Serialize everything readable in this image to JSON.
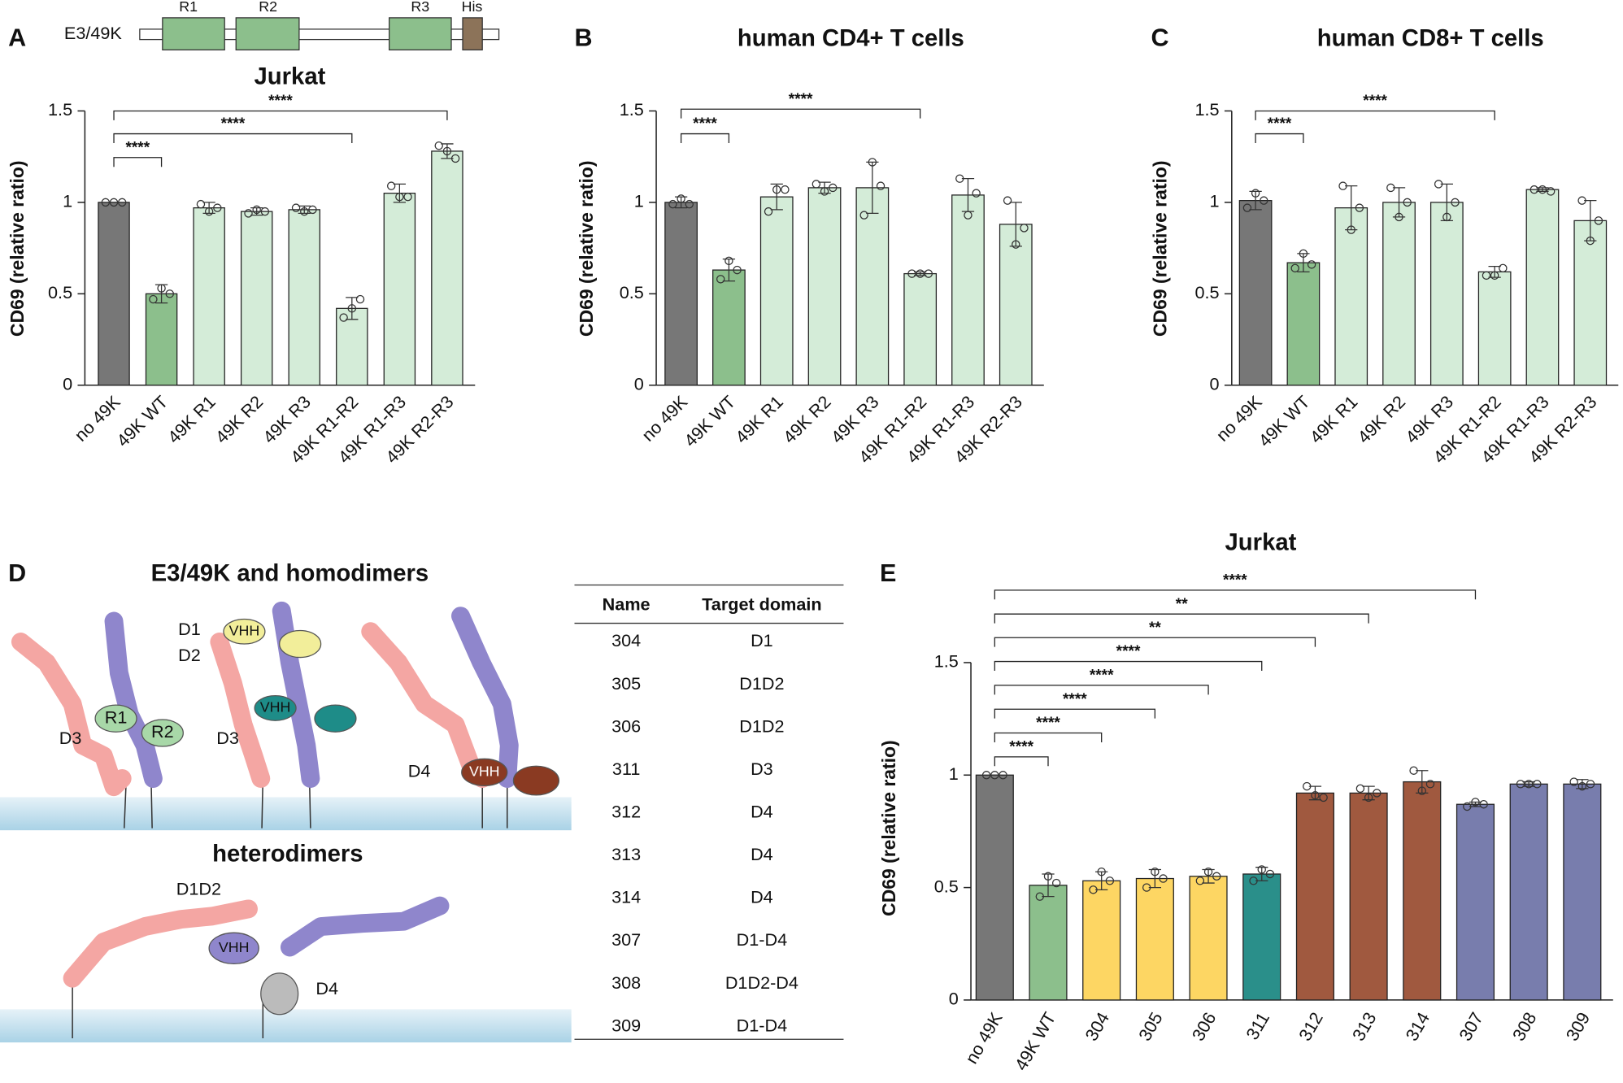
{
  "panels": {
    "a": "A",
    "b": "B",
    "c": "C",
    "d": "D",
    "e": "E"
  },
  "schematic": {
    "name": "E3/49K",
    "r1": "R1",
    "r2": "R2",
    "r3": "R3",
    "his": "His"
  },
  "diagram": {
    "title": "E3/49K and homodimers",
    "subtitle": "heterodimers",
    "labels1": {
      "r1": "R1",
      "r2": "R2",
      "d3": "D3"
    },
    "labels2": {
      "d1": "D1",
      "d2": "D2",
      "d3": "D3",
      "vhh1": "VHH",
      "vhh2": "VHH"
    },
    "labels3": {
      "d4": "D4",
      "vhh": "VHH"
    },
    "labels4": {
      "d1d2": "D1D2",
      "vhh": "VHH",
      "d4": "D4"
    }
  },
  "table": {
    "header": [
      "Name",
      "Target domain"
    ],
    "rows": [
      [
        "304",
        "D1"
      ],
      [
        "305",
        "D1D2"
      ],
      [
        "306",
        "D1D2"
      ],
      [
        "311",
        "D3"
      ],
      [
        "312",
        "D4"
      ],
      [
        "313",
        "D4"
      ],
      [
        "314",
        "D4"
      ],
      [
        "307",
        "D1-D4"
      ],
      [
        "308",
        "D1D2-D4"
      ],
      [
        "309",
        "D1-D4"
      ]
    ]
  },
  "chart_data": [
    {
      "type": "bar",
      "title": "Jurkat",
      "y_label": "CD69 (relative ratio)",
      "categories": [
        "no 49K",
        "49K WT",
        "49K R1",
        "49K R2",
        "49K R3",
        "49K R1-R2",
        "49K R1-R3",
        "49K R2-R3"
      ],
      "values": [
        1.0,
        0.5,
        0.97,
        0.95,
        0.96,
        0.42,
        1.05,
        1.28
      ],
      "errors": [
        0,
        0.05,
        0.03,
        0.02,
        0.02,
        0.06,
        0.05,
        0.04
      ],
      "points": [
        [
          1,
          1,
          1
        ],
        [
          0.47,
          0.53,
          0.5
        ],
        [
          0.99,
          0.95,
          0.97
        ],
        [
          0.94,
          0.96,
          0.95
        ],
        [
          0.97,
          0.95,
          0.96
        ],
        [
          0.37,
          0.42,
          0.47
        ],
        [
          1.09,
          1.03,
          1.03
        ],
        [
          1.31,
          1.28,
          1.24
        ]
      ],
      "colors": [
        "#777777",
        "#8cbf8c",
        "#d4ecd8",
        "#d4ecd8",
        "#d4ecd8",
        "#d4ecd8",
        "#d4ecd8",
        "#d4ecd8"
      ],
      "ylim": [
        0,
        1.5
      ],
      "yticks": [
        0,
        0.5,
        1,
        1.5
      ],
      "brackets": [
        {
          "from": "no 49K",
          "to": "49K WT",
          "y": 1.245,
          "label": "****"
        },
        {
          "from": "no 49K",
          "to": "49K R1-R2",
          "y": 1.375,
          "label": "****"
        },
        {
          "from": "no 49K",
          "to": "49K R2-R3",
          "y": 1.5,
          "label": "****"
        }
      ]
    },
    {
      "type": "bar",
      "title": "human CD4+ T cells",
      "y_label": "CD69 (relative ratio)",
      "categories": [
        "no 49K",
        "49K WT",
        "49K R1",
        "49K R2",
        "49K R3",
        "49K R1-R2",
        "49K R1-R3",
        "49K R2-R3"
      ],
      "values": [
        1.0,
        0.63,
        1.03,
        1.08,
        1.08,
        0.61,
        1.04,
        0.88
      ],
      "errors": [
        0.03,
        0.06,
        0.07,
        0.03,
        0.14,
        0.01,
        0.09,
        0.12
      ],
      "points": [
        [
          0.99,
          1.02,
          0.99
        ],
        [
          0.58,
          0.68,
          0.63
        ],
        [
          0.95,
          1.07,
          1.07
        ],
        [
          1.1,
          1.06,
          1.08
        ],
        [
          0.93,
          1.22,
          1.09
        ],
        [
          0.61,
          0.61,
          0.61
        ],
        [
          1.13,
          0.93,
          1.05
        ],
        [
          1.01,
          0.77,
          0.86
        ]
      ],
      "colors": [
        "#777777",
        "#8cbf8c",
        "#d4ecd8",
        "#d4ecd8",
        "#d4ecd8",
        "#d4ecd8",
        "#d4ecd8",
        "#d4ecd8"
      ],
      "ylim": [
        0,
        1.5
      ],
      "yticks": [
        0,
        0.5,
        1,
        1.5
      ],
      "brackets": [
        {
          "from": "no 49K",
          "to": "49K WT",
          "y": 1.375,
          "label": "****"
        },
        {
          "from": "no 49K",
          "to": "49K R1-R2",
          "y": 1.51,
          "label": "****"
        }
      ]
    },
    {
      "type": "bar",
      "title": "human CD8+ T cells",
      "y_label": "CD69 (relative ratio)",
      "categories": [
        "no 49K",
        "49K WT",
        "49K R1",
        "49K R2",
        "49K R3",
        "49K R1-R2",
        "49K R1-R3",
        "49K R2-R3"
      ],
      "values": [
        1.01,
        0.67,
        0.97,
        1.0,
        1.0,
        0.62,
        1.07,
        0.9
      ],
      "errors": [
        0.05,
        0.05,
        0.12,
        0.08,
        0.1,
        0.03,
        0.01,
        0.11
      ],
      "points": [
        [
          0.97,
          1.05,
          1.01
        ],
        [
          0.64,
          0.72,
          0.66
        ],
        [
          1.09,
          0.85,
          0.97
        ],
        [
          1.08,
          0.92,
          1.0
        ],
        [
          1.1,
          0.92,
          1.0
        ],
        [
          0.6,
          0.6,
          0.64
        ],
        [
          1.07,
          1.07,
          1.06
        ],
        [
          1.01,
          0.79,
          0.9
        ]
      ],
      "colors": [
        "#777777",
        "#8cbf8c",
        "#d4ecd8",
        "#d4ecd8",
        "#d4ecd8",
        "#d4ecd8",
        "#d4ecd8",
        "#d4ecd8"
      ],
      "ylim": [
        0,
        1.5
      ],
      "yticks": [
        0,
        0.5,
        1,
        1.5
      ],
      "brackets": [
        {
          "from": "no 49K",
          "to": "49K WT",
          "y": 1.375,
          "label": "****"
        },
        {
          "from": "no 49K",
          "to": "49K R1-R2",
          "y": 1.5,
          "label": "****"
        }
      ]
    },
    {
      "type": "bar",
      "title": "Jurkat",
      "y_label": "CD69 (relative ratio)",
      "categories": [
        "no 49K",
        "49K WT",
        "304",
        "305",
        "306",
        "311",
        "312",
        "313",
        "314",
        "307",
        "308",
        "309"
      ],
      "values": [
        1.0,
        0.51,
        0.53,
        0.54,
        0.55,
        0.56,
        0.92,
        0.92,
        0.97,
        0.87,
        0.96,
        0.96
      ],
      "errors": [
        0,
        0.05,
        0.04,
        0.04,
        0.03,
        0.03,
        0.03,
        0.03,
        0.05,
        0.01,
        0.01,
        0.02
      ],
      "points": [
        [
          1,
          1,
          1
        ],
        [
          0.46,
          0.55,
          0.52
        ],
        [
          0.49,
          0.57,
          0.53
        ],
        [
          0.5,
          0.57,
          0.54
        ],
        [
          0.53,
          0.57,
          0.55
        ],
        [
          0.53,
          0.58,
          0.56
        ],
        [
          0.95,
          0.91,
          0.9
        ],
        [
          0.94,
          0.9,
          0.92
        ],
        [
          1.02,
          0.93,
          0.96
        ],
        [
          0.86,
          0.88,
          0.87
        ],
        [
          0.96,
          0.96,
          0.96
        ],
        [
          0.97,
          0.95,
          0.96
        ]
      ],
      "colors": [
        "#777777",
        "#8cbf8c",
        "#fdd663",
        "#fdd663",
        "#fdd663",
        "#2a8f8a",
        "#a0593f",
        "#a0593f",
        "#a0593f",
        "#787dad",
        "#787dad",
        "#787dad"
      ],
      "ylim": [
        0,
        1.5
      ],
      "yticks": [
        0,
        0.5,
        1,
        1.5
      ],
      "brackets": [
        {
          "from": "no 49K",
          "to": "49K WT",
          "y": 1.081,
          "label": "****"
        },
        {
          "from": "no 49K",
          "to": "304",
          "y": 1.187,
          "label": "****"
        },
        {
          "from": "no 49K",
          "to": "305",
          "y": 1.293,
          "label": "****"
        },
        {
          "from": "no 49K",
          "to": "306",
          "y": 1.399,
          "label": "****"
        },
        {
          "from": "no 49K",
          "to": "311",
          "y": 1.505,
          "label": "****"
        },
        {
          "from": "no 49K",
          "to": "312",
          "y": 1.611,
          "label": "**"
        },
        {
          "from": "no 49K",
          "to": "313",
          "y": 1.716,
          "label": "**"
        },
        {
          "from": "no 49K",
          "to": "307",
          "y": 1.822,
          "label": "****"
        }
      ]
    }
  ]
}
